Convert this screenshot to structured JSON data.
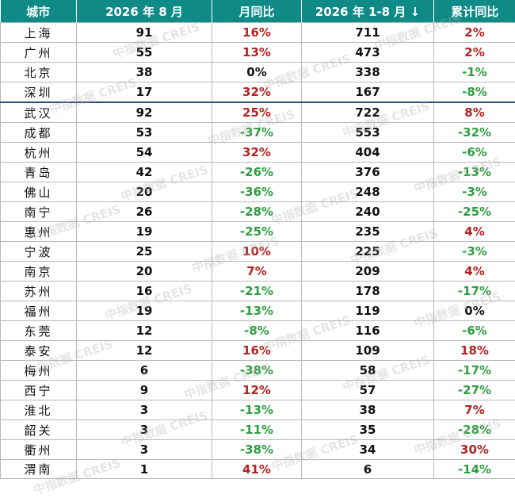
{
  "colors": {
    "header_bg": "#0f8a86",
    "header_text": "#ffffff",
    "positive": "#b22222",
    "negative": "#2e9e40",
    "neutral": "#111111"
  },
  "header": {
    "city": "城市",
    "aug_2026": "2026 年 8 月",
    "mom": "月同比",
    "jan_aug_2026": "2026 年 1-8 月",
    "sort_icon": "↓",
    "cum_yoy": "累计同比"
  },
  "rows": [
    {
      "city": "上海",
      "aug": "91",
      "mom": "16%",
      "mom_trend": "up",
      "total": "711",
      "yoy": "2%",
      "yoy_trend": "up"
    },
    {
      "city": "广州",
      "aug": "55",
      "mom": "13%",
      "mom_trend": "up",
      "total": "473",
      "yoy": "2%",
      "yoy_trend": "up"
    },
    {
      "city": "北京",
      "aug": "38",
      "mom": "0%",
      "mom_trend": "flat",
      "total": "338",
      "yoy": "-1%",
      "yoy_trend": "down"
    },
    {
      "city": "深圳",
      "aug": "17",
      "mom": "32%",
      "mom_trend": "up",
      "total": "167",
      "yoy": "-8%",
      "yoy_trend": "down"
    },
    {
      "city": "武汉",
      "aug": "92",
      "mom": "25%",
      "mom_trend": "up",
      "total": "722",
      "yoy": "8%",
      "yoy_trend": "up"
    },
    {
      "city": "成都",
      "aug": "53",
      "mom": "-37%",
      "mom_trend": "down",
      "total": "553",
      "yoy": "-32%",
      "yoy_trend": "down"
    },
    {
      "city": "杭州",
      "aug": "54",
      "mom": "32%",
      "mom_trend": "up",
      "total": "404",
      "yoy": "-6%",
      "yoy_trend": "down"
    },
    {
      "city": "青岛",
      "aug": "42",
      "mom": "-26%",
      "mom_trend": "down",
      "total": "376",
      "yoy": "-13%",
      "yoy_trend": "down"
    },
    {
      "city": "佛山",
      "aug": "20",
      "mom": "-36%",
      "mom_trend": "down",
      "total": "248",
      "yoy": "-3%",
      "yoy_trend": "down"
    },
    {
      "city": "南宁",
      "aug": "26",
      "mom": "-28%",
      "mom_trend": "down",
      "total": "240",
      "yoy": "-25%",
      "yoy_trend": "down"
    },
    {
      "city": "惠州",
      "aug": "19",
      "mom": "-25%",
      "mom_trend": "down",
      "total": "235",
      "yoy": "4%",
      "yoy_trend": "up"
    },
    {
      "city": "宁波",
      "aug": "25",
      "mom": "10%",
      "mom_trend": "up",
      "total": "225",
      "yoy": "-3%",
      "yoy_trend": "down"
    },
    {
      "city": "南京",
      "aug": "20",
      "mom": "7%",
      "mom_trend": "up",
      "total": "209",
      "yoy": "4%",
      "yoy_trend": "up"
    },
    {
      "city": "苏州",
      "aug": "16",
      "mom": "-21%",
      "mom_trend": "down",
      "total": "178",
      "yoy": "-17%",
      "yoy_trend": "down"
    },
    {
      "city": "福州",
      "aug": "19",
      "mom": "-13%",
      "mom_trend": "down",
      "total": "119",
      "yoy": "0%",
      "yoy_trend": "flat"
    },
    {
      "city": "东莞",
      "aug": "12",
      "mom": "-8%",
      "mom_trend": "down",
      "total": "116",
      "yoy": "-6%",
      "yoy_trend": "down"
    },
    {
      "city": "泰安",
      "aug": "12",
      "mom": "16%",
      "mom_trend": "up",
      "total": "109",
      "yoy": "18%",
      "yoy_trend": "up"
    },
    {
      "city": "梅州",
      "aug": "6",
      "mom": "-38%",
      "mom_trend": "down",
      "total": "58",
      "yoy": "-17%",
      "yoy_trend": "down"
    },
    {
      "city": "西宁",
      "aug": "9",
      "mom": "12%",
      "mom_trend": "up",
      "total": "57",
      "yoy": "-27%",
      "yoy_trend": "down"
    },
    {
      "city": "淮北",
      "aug": "3",
      "mom": "-13%",
      "mom_trend": "down",
      "total": "38",
      "yoy": "7%",
      "yoy_trend": "up"
    },
    {
      "city": "韶关",
      "aug": "3",
      "mom": "-11%",
      "mom_trend": "down",
      "total": "35",
      "yoy": "-28%",
      "yoy_trend": "down"
    },
    {
      "city": "衢州",
      "aug": "3",
      "mom": "-38%",
      "mom_trend": "down",
      "total": "34",
      "yoy": "30%",
      "yoy_trend": "up"
    },
    {
      "city": "渭南",
      "aug": "1",
      "mom": "41%",
      "mom_trend": "up",
      "total": "6",
      "yoy": "-14%",
      "yoy_trend": "down"
    }
  ],
  "watermark": "中指数据 CREIS"
}
